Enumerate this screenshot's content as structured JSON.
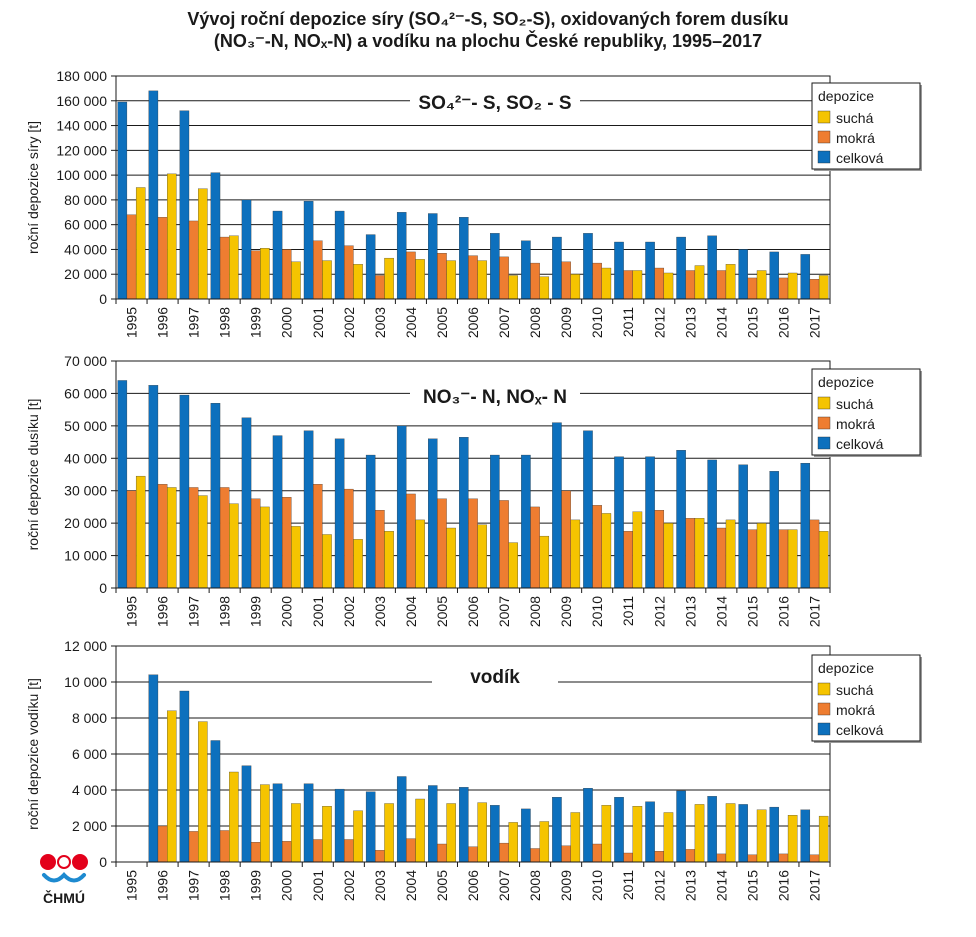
{
  "title": {
    "line1": "Vývoj roční depozice síry (SO₄²⁻-S, SO₂-S), oxidovaných forem dusíku",
    "line2": "(NO₃⁻-N, NOₓ-N) a vodíku na plochu České republiky, 1995–2017"
  },
  "logo": {
    "text": "ČHMÚ"
  },
  "colors": {
    "sucha": "#f5c400",
    "mokra": "#ee7d31",
    "celkova": "#0d70bd"
  },
  "chart_data": [
    {
      "type": "bar",
      "panel_label": "SO₄²⁻- S, SO₂ - S",
      "ylabel": "roční depozice síry [t]",
      "ylim": [
        0,
        180000
      ],
      "yticks": [
        0,
        20000,
        40000,
        60000,
        80000,
        100000,
        120000,
        140000,
        160000,
        180000
      ],
      "ytick_labels": [
        "0",
        "20 000",
        "40 000",
        "60 000",
        "80 000",
        "100 000",
        "120 000",
        "140 000",
        "160 000",
        "180 000"
      ],
      "categories": [
        "1995",
        "1996",
        "1997",
        "1998",
        "1999",
        "2000",
        "2001",
        "2002",
        "2003",
        "2004",
        "2005",
        "2006",
        "2007",
        "2008",
        "2009",
        "2010",
        "2011",
        "2012",
        "2013",
        "2014",
        "2015",
        "2016",
        "2017"
      ],
      "grid": "horizontal",
      "legend": {
        "title": "depozice",
        "position": "right"
      },
      "series": [
        {
          "name": "suchá",
          "values": [
            90000,
            101000,
            89000,
            51000,
            41000,
            30000,
            31000,
            28000,
            33000,
            32000,
            31000,
            31000,
            19000,
            18000,
            20000,
            25000,
            23000,
            21000,
            27000,
            28000,
            23000,
            21000,
            19000
          ]
        },
        {
          "name": "mokrá",
          "values": [
            68000,
            66000,
            63000,
            50000,
            39000,
            40000,
            47000,
            43000,
            19000,
            38000,
            37000,
            35000,
            34000,
            29000,
            30000,
            29000,
            23000,
            25000,
            23000,
            23000,
            17000,
            17000,
            16000
          ]
        },
        {
          "name": "celková",
          "values": [
            159000,
            168000,
            152000,
            102000,
            80000,
            71000,
            79000,
            71000,
            52000,
            70000,
            69000,
            66000,
            53000,
            47000,
            50000,
            53000,
            46000,
            46000,
            50000,
            51000,
            40000,
            38000,
            36000
          ]
        }
      ]
    },
    {
      "type": "bar",
      "panel_label": "NO₃⁻- N, NOₓ- N",
      "ylabel": "roční depozice dusíku [t]",
      "ylim": [
        0,
        70000
      ],
      "yticks": [
        0,
        10000,
        20000,
        30000,
        40000,
        50000,
        60000,
        70000
      ],
      "ytick_labels": [
        "0",
        "10 000",
        "20 000",
        "30 000",
        "40 000",
        "50 000",
        "60 000",
        "70 000"
      ],
      "categories": [
        "1995",
        "1996",
        "1997",
        "1998",
        "1999",
        "2000",
        "2001",
        "2002",
        "2003",
        "2004",
        "2005",
        "2006",
        "2007",
        "2008",
        "2009",
        "2010",
        "2011",
        "2012",
        "2013",
        "2014",
        "2015",
        "2016",
        "2017"
      ],
      "grid": "horizontal",
      "legend": {
        "title": "depozice",
        "position": "right"
      },
      "series": [
        {
          "name": "suchá",
          "values": [
            34500,
            31000,
            28500,
            26000,
            25000,
            19000,
            16500,
            15000,
            17500,
            21000,
            18500,
            19500,
            14000,
            16000,
            21000,
            23000,
            23500,
            20000,
            21500,
            21000,
            20000,
            18000,
            17500
          ]
        },
        {
          "name": "mokrá",
          "values": [
            30000,
            32000,
            31000,
            31000,
            27500,
            28000,
            32000,
            30500,
            24000,
            29000,
            27500,
            27500,
            27000,
            25000,
            30000,
            25500,
            17500,
            24000,
            21500,
            18500,
            18000,
            18000,
            21000
          ]
        },
        {
          "name": "celková",
          "values": [
            64000,
            62500,
            59500,
            57000,
            52500,
            47000,
            48500,
            46000,
            41000,
            50000,
            46000,
            46500,
            41000,
            41000,
            51000,
            48500,
            40500,
            40500,
            42500,
            39500,
            38000,
            36000,
            38500
          ]
        }
      ]
    },
    {
      "type": "bar",
      "panel_label": "vodík",
      "ylabel": "roční depozice vodíku [t]",
      "ylim": [
        0,
        12000
      ],
      "yticks": [
        0,
        2000,
        4000,
        6000,
        8000,
        10000,
        12000
      ],
      "ytick_labels": [
        "0",
        "2 000",
        "4 000",
        "6 000",
        "8 000",
        "10 000",
        "12 000"
      ],
      "categories": [
        "1995",
        "1996",
        "1997",
        "1998",
        "1999",
        "2000",
        "2001",
        "2002",
        "2003",
        "2004",
        "2005",
        "2006",
        "2007",
        "2008",
        "2009",
        "2010",
        "2011",
        "2012",
        "2013",
        "2014",
        "2015",
        "2016",
        "2017"
      ],
      "grid": "horizontal",
      "legend": {
        "title": "depozice",
        "position": "right"
      },
      "series": [
        {
          "name": "suchá",
          "values": [
            0,
            8400,
            7800,
            5000,
            4300,
            3250,
            3100,
            2850,
            3250,
            3500,
            3250,
            3300,
            2200,
            2250,
            2750,
            3150,
            3100,
            2750,
            3200,
            3250,
            2900,
            2600,
            2550
          ]
        },
        {
          "name": "mokrá",
          "values": [
            0,
            2000,
            1700,
            1750,
            1100,
            1150,
            1250,
            1250,
            650,
            1300,
            1000,
            850,
            1050,
            750,
            900,
            1000,
            500,
            600,
            700,
            450,
            400,
            450,
            400
          ]
        },
        {
          "name": "celková",
          "values": [
            0,
            10400,
            9500,
            6750,
            5350,
            4350,
            4350,
            4050,
            3900,
            4750,
            4250,
            4150,
            3150,
            2950,
            3600,
            4100,
            3600,
            3350,
            3950,
            3650,
            3200,
            3050,
            2900
          ]
        }
      ]
    }
  ]
}
